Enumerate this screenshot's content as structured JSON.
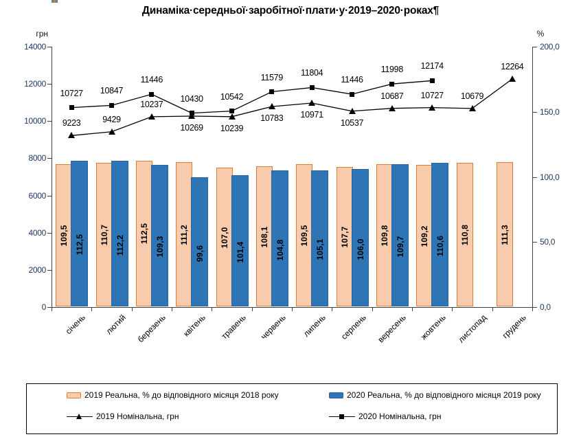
{
  "title": "Динаміка·середньої·заробітної·плати·у·2019–2020·роках¶",
  "chart_data": {
    "type": "bar",
    "subtype": "combo-bar-line-dual-axis",
    "categories": [
      "січень",
      "лютий",
      "березень",
      "квітень",
      "травень",
      "червень",
      "липень",
      "серпень",
      "вересень",
      "жовтень",
      "листопад",
      "грудень"
    ],
    "left_axis": {
      "label": "грн",
      "min": 0,
      "max": 14000,
      "step": 2000,
      "ticks": [
        "0",
        "2000",
        "4000",
        "6000",
        "8000",
        "10000",
        "12000",
        "14000"
      ]
    },
    "right_axis": {
      "label": "%",
      "min": 0,
      "max": 200,
      "step": 50,
      "ticks": [
        "0,0",
        "50,0",
        "100,0",
        "150,0",
        "200,0"
      ]
    },
    "grid": "off",
    "legend_position": "bottom",
    "series": [
      {
        "name": "2019 Реальна, % до відповідного місяця 2018 року",
        "type": "bar",
        "axis": "right",
        "fill": "#F8CBAD",
        "border": "#E07B34",
        "values": [
          109.5,
          110.7,
          112.5,
          111.2,
          107.0,
          108.1,
          109.5,
          107.7,
          109.8,
          109.2,
          110.8,
          111.3
        ],
        "labels": [
          "109,5",
          "110,7",
          "112,5",
          "111,2",
          "107,0",
          "108,1",
          "109,5",
          "107,7",
          "109,8",
          "109,2",
          "110,8",
          "111,3"
        ]
      },
      {
        "name": "2020 Реальна, % до відповідного місяця 2019 року",
        "type": "bar",
        "axis": "right",
        "fill": "#2E75B6",
        "border": "#2565A8",
        "values": [
          112.5,
          112.2,
          109.3,
          99.6,
          101.4,
          104.8,
          105.1,
          106.0,
          109.7,
          110.6
        ],
        "labels": [
          "112,5",
          "112,2",
          "109,3",
          "99,6",
          "101,4",
          "104,8",
          "105,1",
          "106,0",
          "109,7",
          "110,6"
        ]
      },
      {
        "name": "2019 Номінальна, грн",
        "type": "line",
        "axis": "left",
        "marker": "triangle",
        "color": "#000000",
        "values": [
          9223,
          9429,
          10237,
          10269,
          10239,
          10783,
          10971,
          10537,
          10687,
          10727,
          10679,
          12264
        ],
        "labels": [
          "9223",
          "9429",
          "10237",
          "10269",
          "10239",
          "10783",
          "10971",
          "10537",
          "10687",
          "10727",
          "10679",
          "12264"
        ],
        "label_sides": [
          "above",
          "above",
          "above",
          "below",
          "below",
          "below",
          "below",
          "below",
          "above",
          "above",
          "above",
          "above"
        ]
      },
      {
        "name": "2020 Номінальна, грн",
        "type": "line",
        "axis": "left",
        "marker": "square",
        "color": "#000000",
        "values": [
          10727,
          10847,
          11446,
          10430,
          10542,
          11579,
          11804,
          11446,
          11998,
          12174
        ],
        "labels": [
          "10727",
          "10847",
          "11446",
          "10430",
          "10542",
          "11579",
          "11804",
          "11446",
          "11998",
          "12174"
        ],
        "label_sides": [
          "above",
          "above",
          "above",
          "above",
          "above",
          "above",
          "above",
          "above",
          "above",
          "above"
        ]
      }
    ],
    "legend": {
      "items": [
        {
          "swatch": "bar-orange",
          "label": "2019 Реальна, % до відповідного місяця 2018 року"
        },
        {
          "swatch": "bar-blue",
          "label": "2020 Реальна, % до відповідного місяця 2019 року"
        },
        {
          "swatch": "line-triangle",
          "label": "2019 Номінальна, грн"
        },
        {
          "swatch": "line-square",
          "label": "2020 Номінальна, грн"
        }
      ]
    }
  },
  "colors": {
    "bar_2019_fill": "#F8CBAD",
    "bar_2019_border": "#E07B34",
    "bar_2020_fill": "#2E75B6",
    "bar_2020_border": "#2565A8",
    "line_color": "#000000",
    "axis_label_color": "#1F3864"
  }
}
